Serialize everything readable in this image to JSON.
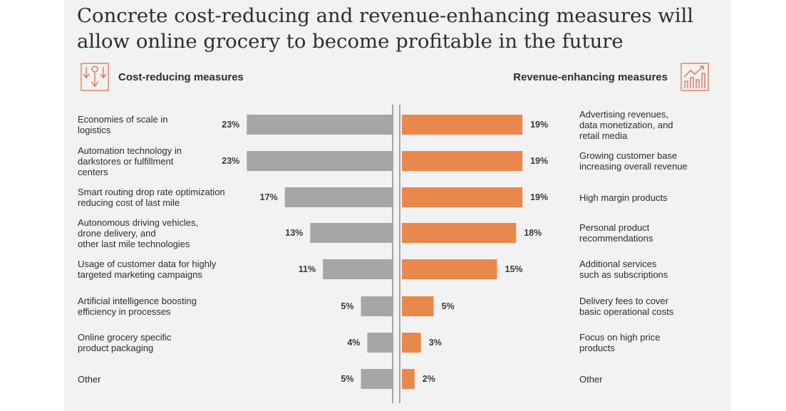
{
  "title": "Concrete cost-reducing and revenue-enhancing measures will allow online grocery to become profitable in the future",
  "left_section": {
    "label": "Cost-reducing measures",
    "icon": "cost-down-icon"
  },
  "right_section": {
    "label": "Revenue-enhancing measures",
    "icon": "revenue-chart-icon"
  },
  "colors": {
    "cost_bar": "#a6a6a6",
    "revenue_bar": "#e8884c",
    "divider": "#8c8c8c",
    "icon": "#e16a48"
  },
  "chart_data": {
    "type": "bar",
    "orientation": "horizontal-diverging",
    "value_unit": "%",
    "series": [
      {
        "name": "Cost-reducing measures",
        "side": "left",
        "categories": [
          "Economies of scale in logistics",
          "Automation technology in darkstores or fulfillment centers",
          "Smart routing drop rate optimization reducing cost of last mile",
          "Autonomous driving vehicles, drone delivery, and other last mile technologies",
          "Usage of customer data for highly targeted marketing campaigns",
          "Artificial intelligence boosting efficiency in processes",
          "Online grocery specific product packaging",
          "Other"
        ],
        "values": [
          23,
          23,
          17,
          13,
          11,
          5,
          4,
          5
        ],
        "labels": [
          "23%",
          "23%",
          "17%",
          "13%",
          "11%",
          "5%",
          "4%",
          "5%"
        ]
      },
      {
        "name": "Revenue-enhancing measures",
        "side": "right",
        "categories": [
          "Advertising revenues, data monetization, and retail media",
          "Growing customer base increasing overall revenue",
          "High margin products",
          "Personal product recommendations",
          "Additional services such as subscriptions",
          "Delivery fees to cover basic operational costs",
          "Focus on high price products",
          "Other"
        ],
        "values": [
          19,
          19,
          19,
          18,
          15,
          5,
          3,
          2
        ],
        "labels": [
          "19%",
          "19%",
          "19%",
          "18%",
          "15%",
          "5%",
          "3%",
          "2%"
        ]
      }
    ]
  }
}
